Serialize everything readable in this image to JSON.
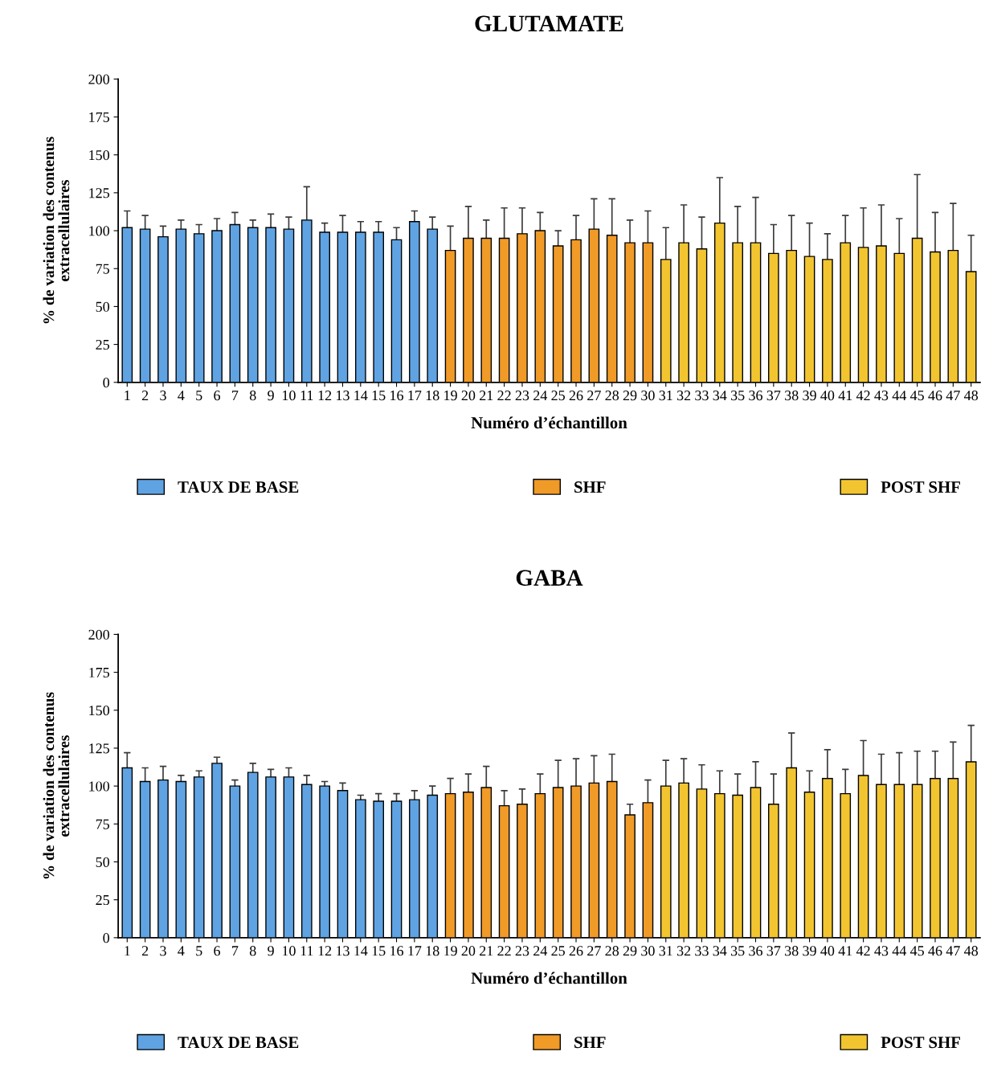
{
  "chart_data": [
    {
      "type": "bar",
      "title": "GLUTAMATE",
      "xlabel": "Numéro d’échantillon",
      "ylabel": "% de variation des contenus\nextracellulaires",
      "categories": [
        "1",
        "2",
        "3",
        "4",
        "5",
        "6",
        "7",
        "8",
        "9",
        "10",
        "11",
        "12",
        "13",
        "14",
        "15",
        "16",
        "17",
        "18",
        "19",
        "20",
        "21",
        "22",
        "23",
        "24",
        "25",
        "26",
        "27",
        "28",
        "29",
        "30",
        "31",
        "32",
        "33",
        "34",
        "35",
        "36",
        "37",
        "38",
        "39",
        "40",
        "41",
        "42",
        "43",
        "44",
        "45",
        "46",
        "47",
        "48"
      ],
      "ylim": [
        0,
        200
      ],
      "yticks": [
        0,
        25,
        50,
        75,
        100,
        125,
        150,
        175,
        200
      ],
      "legend": "bottom",
      "series": [
        {
          "name": "TAUX DE BASE",
          "color": "#5fa3e3",
          "values": [
            102,
            101,
            96,
            101,
            98,
            100,
            104,
            102,
            102,
            101,
            107,
            99,
            99,
            99,
            99,
            94,
            106,
            101,
            null,
            null,
            null,
            null,
            null,
            null,
            null,
            null,
            null,
            null,
            null,
            null,
            null,
            null,
            null,
            null,
            null,
            null,
            null,
            null,
            null,
            null,
            null,
            null,
            null,
            null,
            null,
            null,
            null,
            null
          ],
          "errors": [
            11,
            9,
            7,
            6,
            6,
            8,
            8,
            5,
            9,
            8,
            22,
            6,
            11,
            7,
            7,
            8,
            7,
            8,
            null,
            null,
            null,
            null,
            null,
            null,
            null,
            null,
            null,
            null,
            null,
            null,
            null,
            null,
            null,
            null,
            null,
            null,
            null,
            null,
            null,
            null,
            null,
            null,
            null,
            null,
            null,
            null,
            null,
            null
          ]
        },
        {
          "name": "SHF",
          "color": "#f09a28",
          "values": [
            null,
            null,
            null,
            null,
            null,
            null,
            null,
            null,
            null,
            null,
            null,
            null,
            null,
            null,
            null,
            null,
            null,
            null,
            87,
            95,
            95,
            95,
            98,
            100,
            90,
            94,
            101,
            97,
            92,
            92,
            null,
            null,
            null,
            null,
            null,
            null,
            null,
            null,
            null,
            null,
            null,
            null,
            null,
            null,
            null,
            null,
            null,
            null
          ],
          "errors": [
            null,
            null,
            null,
            null,
            null,
            null,
            null,
            null,
            null,
            null,
            null,
            null,
            null,
            null,
            null,
            null,
            null,
            null,
            16,
            21,
            12,
            20,
            17,
            12,
            10,
            16,
            20,
            24,
            15,
            21,
            null,
            null,
            null,
            null,
            null,
            null,
            null,
            null,
            null,
            null,
            null,
            null,
            null,
            null,
            null,
            null,
            null,
            null
          ]
        },
        {
          "name": "POST SHF",
          "color": "#f2c530",
          "values": [
            null,
            null,
            null,
            null,
            null,
            null,
            null,
            null,
            null,
            null,
            null,
            null,
            null,
            null,
            null,
            null,
            null,
            null,
            null,
            null,
            null,
            null,
            null,
            null,
            null,
            null,
            null,
            null,
            null,
            null,
            81,
            92,
            88,
            105,
            92,
            92,
            85,
            87,
            83,
            81,
            92,
            89,
            90,
            85,
            95,
            86,
            87,
            73
          ],
          "errors": [
            null,
            null,
            null,
            null,
            null,
            null,
            null,
            null,
            null,
            null,
            null,
            null,
            null,
            null,
            null,
            null,
            null,
            null,
            null,
            null,
            null,
            null,
            null,
            null,
            null,
            null,
            null,
            null,
            null,
            null,
            21,
            25,
            21,
            30,
            24,
            30,
            19,
            23,
            22,
            17,
            18,
            26,
            27,
            23,
            42,
            26,
            31,
            24
          ]
        }
      ]
    },
    {
      "type": "bar",
      "title": "GABA",
      "xlabel": "Numéro d’échantillon",
      "ylabel": "% de variation des contenus\nextracellulaires",
      "categories": [
        "1",
        "2",
        "3",
        "4",
        "5",
        "6",
        "7",
        "8",
        "9",
        "10",
        "11",
        "12",
        "13",
        "14",
        "15",
        "16",
        "17",
        "18",
        "19",
        "20",
        "21",
        "22",
        "23",
        "24",
        "25",
        "26",
        "27",
        "28",
        "29",
        "30",
        "31",
        "32",
        "33",
        "34",
        "35",
        "36",
        "37",
        "38",
        "39",
        "40",
        "41",
        "42",
        "43",
        "44",
        "45",
        "46",
        "47",
        "48"
      ],
      "ylim": [
        0,
        200
      ],
      "yticks": [
        0,
        25,
        50,
        75,
        100,
        125,
        150,
        175,
        200
      ],
      "legend": "bottom",
      "series": [
        {
          "name": "TAUX DE BASE",
          "color": "#5fa3e3",
          "values": [
            112,
            103,
            104,
            103,
            106,
            115,
            100,
            109,
            106,
            106,
            101,
            100,
            97,
            91,
            90,
            90,
            91,
            94,
            null,
            null,
            null,
            null,
            null,
            null,
            null,
            null,
            null,
            null,
            null,
            null,
            null,
            null,
            null,
            null,
            null,
            null,
            null,
            null,
            null,
            null,
            null,
            null,
            null,
            null,
            null,
            null,
            null,
            null
          ],
          "errors": [
            10,
            9,
            9,
            4,
            4,
            4,
            4,
            6,
            5,
            6,
            6,
            3,
            5,
            3,
            5,
            5,
            6,
            6,
            null,
            null,
            null,
            null,
            null,
            null,
            null,
            null,
            null,
            null,
            null,
            null,
            null,
            null,
            null,
            null,
            null,
            null,
            null,
            null,
            null,
            null,
            null,
            null,
            null,
            null,
            null,
            null,
            null,
            null
          ]
        },
        {
          "name": "SHF",
          "color": "#f09a28",
          "values": [
            null,
            null,
            null,
            null,
            null,
            null,
            null,
            null,
            null,
            null,
            null,
            null,
            null,
            null,
            null,
            null,
            null,
            null,
            95,
            96,
            99,
            87,
            88,
            95,
            99,
            100,
            102,
            103,
            81,
            89,
            null,
            null,
            null,
            null,
            null,
            null,
            null,
            null,
            null,
            null,
            null,
            null,
            null,
            null,
            null,
            null,
            null,
            null
          ],
          "errors": [
            null,
            null,
            null,
            null,
            null,
            null,
            null,
            null,
            null,
            null,
            null,
            null,
            null,
            null,
            null,
            null,
            null,
            null,
            10,
            12,
            14,
            10,
            10,
            13,
            18,
            18,
            18,
            18,
            7,
            15,
            null,
            null,
            null,
            null,
            null,
            null,
            null,
            null,
            null,
            null,
            null,
            null,
            null,
            null,
            null,
            null,
            null,
            null
          ]
        },
        {
          "name": "POST SHF",
          "color": "#f2c530",
          "values": [
            null,
            null,
            null,
            null,
            null,
            null,
            null,
            null,
            null,
            null,
            null,
            null,
            null,
            null,
            null,
            null,
            null,
            null,
            null,
            null,
            null,
            null,
            null,
            null,
            null,
            null,
            null,
            null,
            null,
            null,
            100,
            102,
            98,
            95,
            94,
            99,
            88,
            112,
            96,
            105,
            95,
            107,
            101,
            101,
            101,
            105,
            105,
            116
          ],
          "errors": [
            null,
            null,
            null,
            null,
            null,
            null,
            null,
            null,
            null,
            null,
            null,
            null,
            null,
            null,
            null,
            null,
            null,
            null,
            null,
            null,
            null,
            null,
            null,
            null,
            null,
            null,
            null,
            null,
            null,
            null,
            17,
            16,
            16,
            15,
            14,
            17,
            20,
            23,
            14,
            19,
            16,
            23,
            20,
            21,
            22,
            18,
            24,
            24
          ]
        }
      ]
    }
  ]
}
